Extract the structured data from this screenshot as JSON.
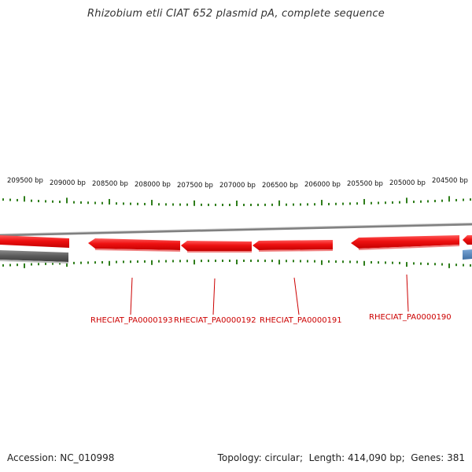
{
  "title": "Rhizobium etli CIAT 652 plasmid pA, complete sequence",
  "footer": {
    "accession_label": "Accession:",
    "accession": "NC_010998",
    "topology_label": "Topology:",
    "topology": "circular",
    "length_label": "Length:",
    "length": "414,090 bp",
    "genes_label": "Genes:",
    "genes": "381"
  },
  "ruler": {
    "labels": [
      "209500 bp",
      "209000 bp",
      "208500 bp",
      "208000 bp",
      "207500 bp",
      "207000 bp",
      "206500 bp",
      "206000 bp",
      "205500 bp",
      "205000 bp",
      "204500 bp"
    ]
  },
  "genes": [
    {
      "name": "RHECIAT_PA0000193"
    },
    {
      "name": "RHECIAT_PA0000192"
    },
    {
      "name": "RHECIAT_PA0000191"
    },
    {
      "name": "RHECIAT_PA0000190"
    }
  ],
  "colors": {
    "forward_gene": "#ee1111",
    "reverse_feature": "#5a5a5a",
    "backbone": "#888888",
    "tick": "#2e7d1a",
    "label": "#cc0000",
    "partial_blue": "#4a7fb5"
  }
}
